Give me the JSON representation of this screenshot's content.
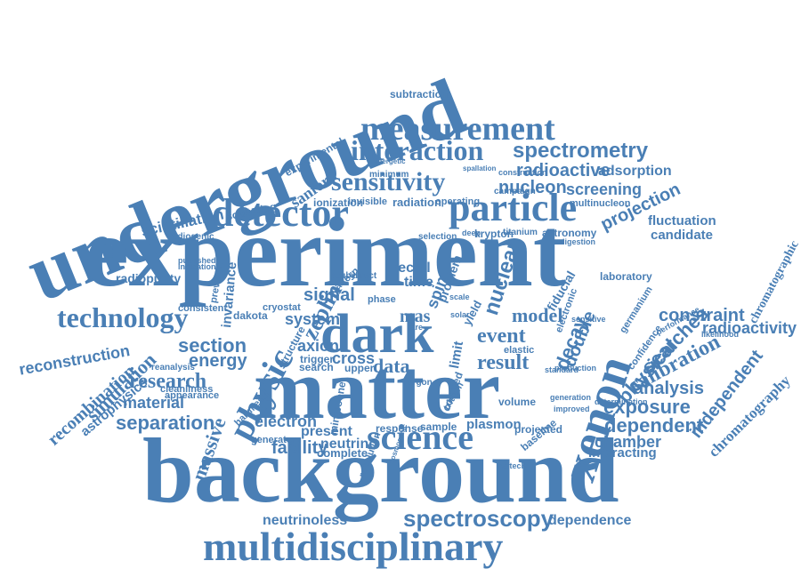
{
  "color": "#4a7fb5",
  "words": [
    "underground",
    "experiment",
    "background",
    "matter",
    "dark",
    "multidisciplinary",
    "detector",
    "particle",
    "measurement",
    "interaction",
    "sensitivity",
    "science",
    "xenon",
    "physic",
    "technology",
    "spectroscopy",
    "spectrometry",
    "radioactive",
    "nucleon",
    "screening",
    "adsorption",
    "projection",
    "fluctuation",
    "candidate",
    "chromatographic",
    "radioactivity",
    "chromatography",
    "independent",
    "calibration",
    "analysis",
    "exposure",
    "dependent",
    "chamber",
    "interacting",
    "constraint",
    "searches",
    "physical",
    "massive",
    "separation",
    "material",
    "research",
    "simulation",
    "energy",
    "section",
    "reconstruction",
    "recombination",
    "astrophysics",
    "scintillation",
    "radiopurity",
    "facility",
    "electron",
    "system",
    "axion",
    "cross",
    "data",
    "result",
    "event",
    "model",
    "zeplin",
    "signal",
    "recoil",
    "time",
    "nuclear",
    "decay",
    "double",
    "present",
    "neutrino",
    "neutrinoless",
    "dependence",
    "complete",
    "plasmon",
    "sample",
    "volume",
    "laboratory",
    "fiducial",
    "krypton",
    "astronomy",
    "titanium",
    "radiation",
    "ionization",
    "sanford",
    "experimental",
    "scattering",
    "subtraction",
    "multinucleon",
    "mas",
    "spin",
    "invariance",
    "dakota",
    "cryostat",
    "limit",
    "yield",
    "elastic",
    "projected",
    "baseline",
    "consistent",
    "cleanliness",
    "appearance",
    "generator",
    "harmless",
    "trigger",
    "upper",
    "search",
    "structure",
    "radiogenic",
    "previous",
    "reanalysis",
    "miniboone",
    "coupled",
    "argon",
    "response",
    "selection",
    "campaign",
    "invisible",
    "minimum",
    "operating",
    "construction",
    "digestion",
    "phase",
    "problem",
    "published",
    "indication",
    "cavern",
    "bouby",
    "direct",
    "caltech",
    "production",
    "improved",
    "generation",
    "determination",
    "resolution",
    "deep",
    "tritium",
    "standard",
    "likelihood",
    "performance",
    "confidence",
    "germanium",
    "electronic",
    "sensitive",
    "solar",
    "scale",
    "rare",
    "energetic",
    "spallation",
    "cosmogenic"
  ]
}
